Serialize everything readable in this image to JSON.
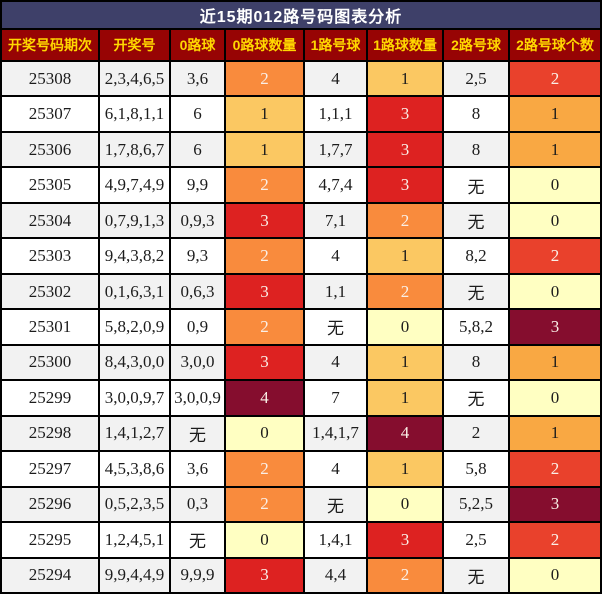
{
  "title": "近15期012路号码图表分析",
  "colors": {
    "title_bg": "#3E4069",
    "title_text": "#FFFFFF",
    "header_bg": "#970404",
    "header_text": "#FFD700",
    "row_bg": "#FFFFFF",
    "row_alt_bg": "#F2F2F2",
    "border": "#000000",
    "cell_text": "#1C1C1C",
    "heat_text_light": "#FAEFE7"
  },
  "heat": {
    "way0_count": {
      "scale": [
        "#FFFFC2",
        "#FBC862",
        "#F98B3D",
        "#DD2221",
        "#850D2E"
      ],
      "light_text_min": 2
    },
    "way1_count": {
      "scale": [
        "#FFFFC2",
        "#FBC862",
        "#F98B3D",
        "#DD2221",
        "#850D2E"
      ],
      "light_text_min": 2
    },
    "way2_count": {
      "scale": [
        "#FFFFC2",
        "#F9A843",
        "#E9412C",
        "#850D2E"
      ],
      "light_text_min": 2
    }
  },
  "chart_data": {
    "type": "heatmap",
    "title": "近15期012路号码图表分析",
    "legend_position": "none",
    "grid": true,
    "columns": [
      {
        "key": "period",
        "label": "开奖号码期次"
      },
      {
        "key": "numbers",
        "label": "开奖号"
      },
      {
        "key": "way0_balls",
        "label": "0路球"
      },
      {
        "key": "way0_count",
        "label": "0路球数量"
      },
      {
        "key": "way1_balls",
        "label": "1路号球"
      },
      {
        "key": "way1_count",
        "label": "1路球数量"
      },
      {
        "key": "way2_balls",
        "label": "2路号球"
      },
      {
        "key": "way2_count",
        "label": "2路号球个数"
      }
    ],
    "rows": [
      {
        "period": "25308",
        "numbers": "2,3,4,6,5",
        "way0_balls": "3,6",
        "way0_count": 2,
        "way1_balls": "4",
        "way1_count": 1,
        "way2_balls": "2,5",
        "way2_count": 2
      },
      {
        "period": "25307",
        "numbers": "6,1,8,1,1",
        "way0_balls": "6",
        "way0_count": 1,
        "way1_balls": "1,1,1",
        "way1_count": 3,
        "way2_balls": "8",
        "way2_count": 1
      },
      {
        "period": "25306",
        "numbers": "1,7,8,6,7",
        "way0_balls": "6",
        "way0_count": 1,
        "way1_balls": "1,7,7",
        "way1_count": 3,
        "way2_balls": "8",
        "way2_count": 1
      },
      {
        "period": "25305",
        "numbers": "4,9,7,4,9",
        "way0_balls": "9,9",
        "way0_count": 2,
        "way1_balls": "4,7,4",
        "way1_count": 3,
        "way2_balls": "无",
        "way2_count": 0
      },
      {
        "period": "25304",
        "numbers": "0,7,9,1,3",
        "way0_balls": "0,9,3",
        "way0_count": 3,
        "way1_balls": "7,1",
        "way1_count": 2,
        "way2_balls": "无",
        "way2_count": 0
      },
      {
        "period": "25303",
        "numbers": "9,4,3,8,2",
        "way0_balls": "9,3",
        "way0_count": 2,
        "way1_balls": "4",
        "way1_count": 1,
        "way2_balls": "8,2",
        "way2_count": 2
      },
      {
        "period": "25302",
        "numbers": "0,1,6,3,1",
        "way0_balls": "0,6,3",
        "way0_count": 3,
        "way1_balls": "1,1",
        "way1_count": 2,
        "way2_balls": "无",
        "way2_count": 0
      },
      {
        "period": "25301",
        "numbers": "5,8,2,0,9",
        "way0_balls": "0,9",
        "way0_count": 2,
        "way1_balls": "无",
        "way1_count": 0,
        "way2_balls": "5,8,2",
        "way2_count": 3
      },
      {
        "period": "25300",
        "numbers": "8,4,3,0,0",
        "way0_balls": "3,0,0",
        "way0_count": 3,
        "way1_balls": "4",
        "way1_count": 1,
        "way2_balls": "8",
        "way2_count": 1
      },
      {
        "period": "25299",
        "numbers": "3,0,0,9,7",
        "way0_balls": "3,0,0,9",
        "way0_count": 4,
        "way1_balls": "7",
        "way1_count": 1,
        "way2_balls": "无",
        "way2_count": 0
      },
      {
        "period": "25298",
        "numbers": "1,4,1,2,7",
        "way0_balls": "无",
        "way0_count": 0,
        "way1_balls": "1,4,1,7",
        "way1_count": 4,
        "way2_balls": "2",
        "way2_count": 1
      },
      {
        "period": "25297",
        "numbers": "4,5,3,8,6",
        "way0_balls": "3,6",
        "way0_count": 2,
        "way1_balls": "4",
        "way1_count": 1,
        "way2_balls": "5,8",
        "way2_count": 2
      },
      {
        "period": "25296",
        "numbers": "0,5,2,3,5",
        "way0_balls": "0,3",
        "way0_count": 2,
        "way1_balls": "无",
        "way1_count": 0,
        "way2_balls": "5,2,5",
        "way2_count": 3
      },
      {
        "period": "25295",
        "numbers": "1,2,4,5,1",
        "way0_balls": "无",
        "way0_count": 0,
        "way1_balls": "1,4,1",
        "way1_count": 3,
        "way2_balls": "2,5",
        "way2_count": 2
      },
      {
        "period": "25294",
        "numbers": "9,9,4,4,9",
        "way0_balls": "9,9,9",
        "way0_count": 3,
        "way1_balls": "4,4",
        "way1_count": 2,
        "way2_balls": "无",
        "way2_count": 0
      }
    ]
  }
}
